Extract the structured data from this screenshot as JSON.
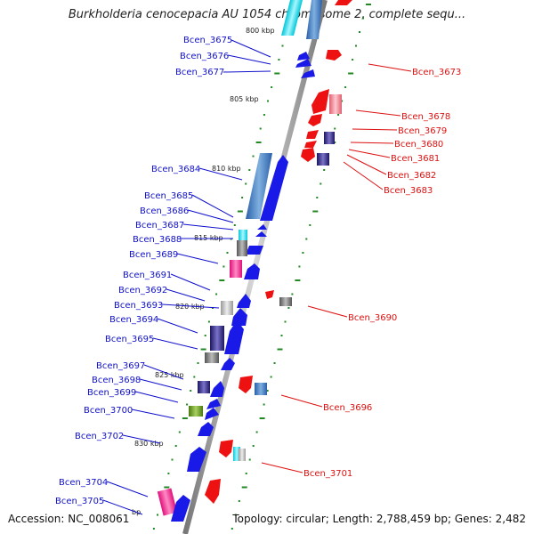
{
  "title": "Burkholderia cenocepacia AU 1054 chromosome 2, complete sequ...",
  "footer": {
    "accession": "Accession: NC_008061",
    "topology": "Topology: circular; Length: 2,788,459 bp; Genes: 2,482"
  },
  "colors": {
    "backbone": "#999999",
    "left_label": "#1010cc",
    "right_label": "#dd1010",
    "tick_dot": "#228822"
  },
  "ticks": [
    {
      "label": "800 kbp",
      "pos": 800
    },
    {
      "label": "805 kbp",
      "pos": 805
    },
    {
      "label": "810 kbp",
      "pos": 810
    },
    {
      "label": "815 kbp",
      "pos": 815
    },
    {
      "label": "820 kbp",
      "pos": 820
    },
    {
      "label": "825 kbp",
      "pos": 825
    },
    {
      "label": "830 kbp",
      "pos": 830
    },
    {
      "label": "bp",
      "pos": 835
    }
  ],
  "left_genes": [
    "Bcen_3675",
    "Bcen_3676",
    "Bcen_3677",
    "Bcen_3684",
    "Bcen_3685",
    "Bcen_3686",
    "Bcen_3687",
    "Bcen_3688",
    "Bcen_3689",
    "Bcen_3691",
    "Bcen_3692",
    "Bcen_3693",
    "Bcen_3694",
    "Bcen_3695",
    "Bcen_3697",
    "Bcen_3698",
    "Bcen_3699",
    "Bcen_3700",
    "Bcen_3702",
    "Bcen_3704",
    "Bcen_3705"
  ],
  "right_genes": [
    "Bcen_3673",
    "Bcen_3678",
    "Bcen_3679",
    "Bcen_3680",
    "Bcen_3681",
    "Bcen_3682",
    "Bcen_3683",
    "Bcen_3690",
    "Bcen_3696",
    "Bcen_3701"
  ]
}
